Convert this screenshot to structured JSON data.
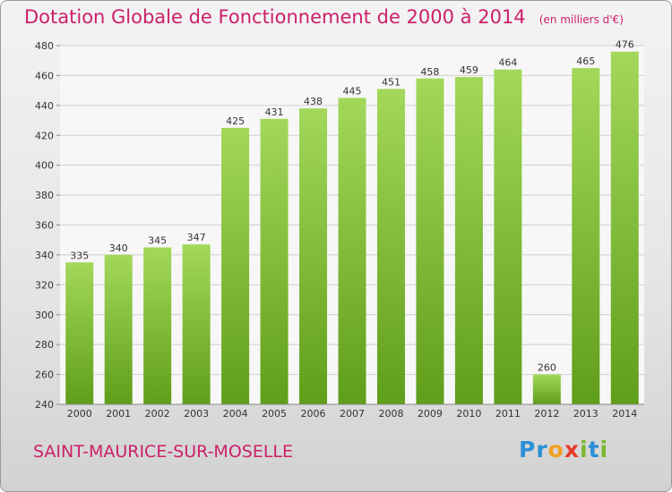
{
  "title": "Dotation Globale de Fonctionnement de 2000 à 2014",
  "unit_label": "(en milliers d'€)",
  "commune": "SAINT-MAURICE-SUR-MOSELLE",
  "logo": {
    "text": "Proxiti",
    "letters": [
      {
        "ch": "P",
        "color": "#2a8fd6"
      },
      {
        "ch": "r",
        "color": "#2a8fd6"
      },
      {
        "ch": "o",
        "color": "#f0a020"
      },
      {
        "ch": "x",
        "color": "#e83a2a"
      },
      {
        "ch": "i",
        "color": "#7ab82e"
      },
      {
        "ch": "t",
        "color": "#2a8fd6"
      },
      {
        "ch": "i",
        "color": "#7ab82e"
      }
    ]
  },
  "colors": {
    "bar_top": "#a3d85a",
    "bar_bottom": "#5f9e1a",
    "title": "#cc1f6a"
  },
  "chart_data": {
    "type": "bar",
    "title": "Dotation Globale de Fonctionnement de 2000 à 2014",
    "subtitle": "(en milliers d'€)",
    "xlabel": "",
    "ylabel": "",
    "categories": [
      "2000",
      "2001",
      "2002",
      "2003",
      "2004",
      "2005",
      "2006",
      "2007",
      "2008",
      "2009",
      "2010",
      "2011",
      "2012",
      "2013",
      "2014"
    ],
    "values": [
      335,
      340,
      345,
      347,
      425,
      431,
      438,
      445,
      451,
      458,
      459,
      464,
      260,
      465,
      476
    ],
    "ylim": [
      240,
      480
    ],
    "yticks": [
      240,
      260,
      280,
      300,
      320,
      340,
      360,
      380,
      400,
      420,
      440,
      460,
      480
    ],
    "grid": true,
    "data_labels": true
  }
}
